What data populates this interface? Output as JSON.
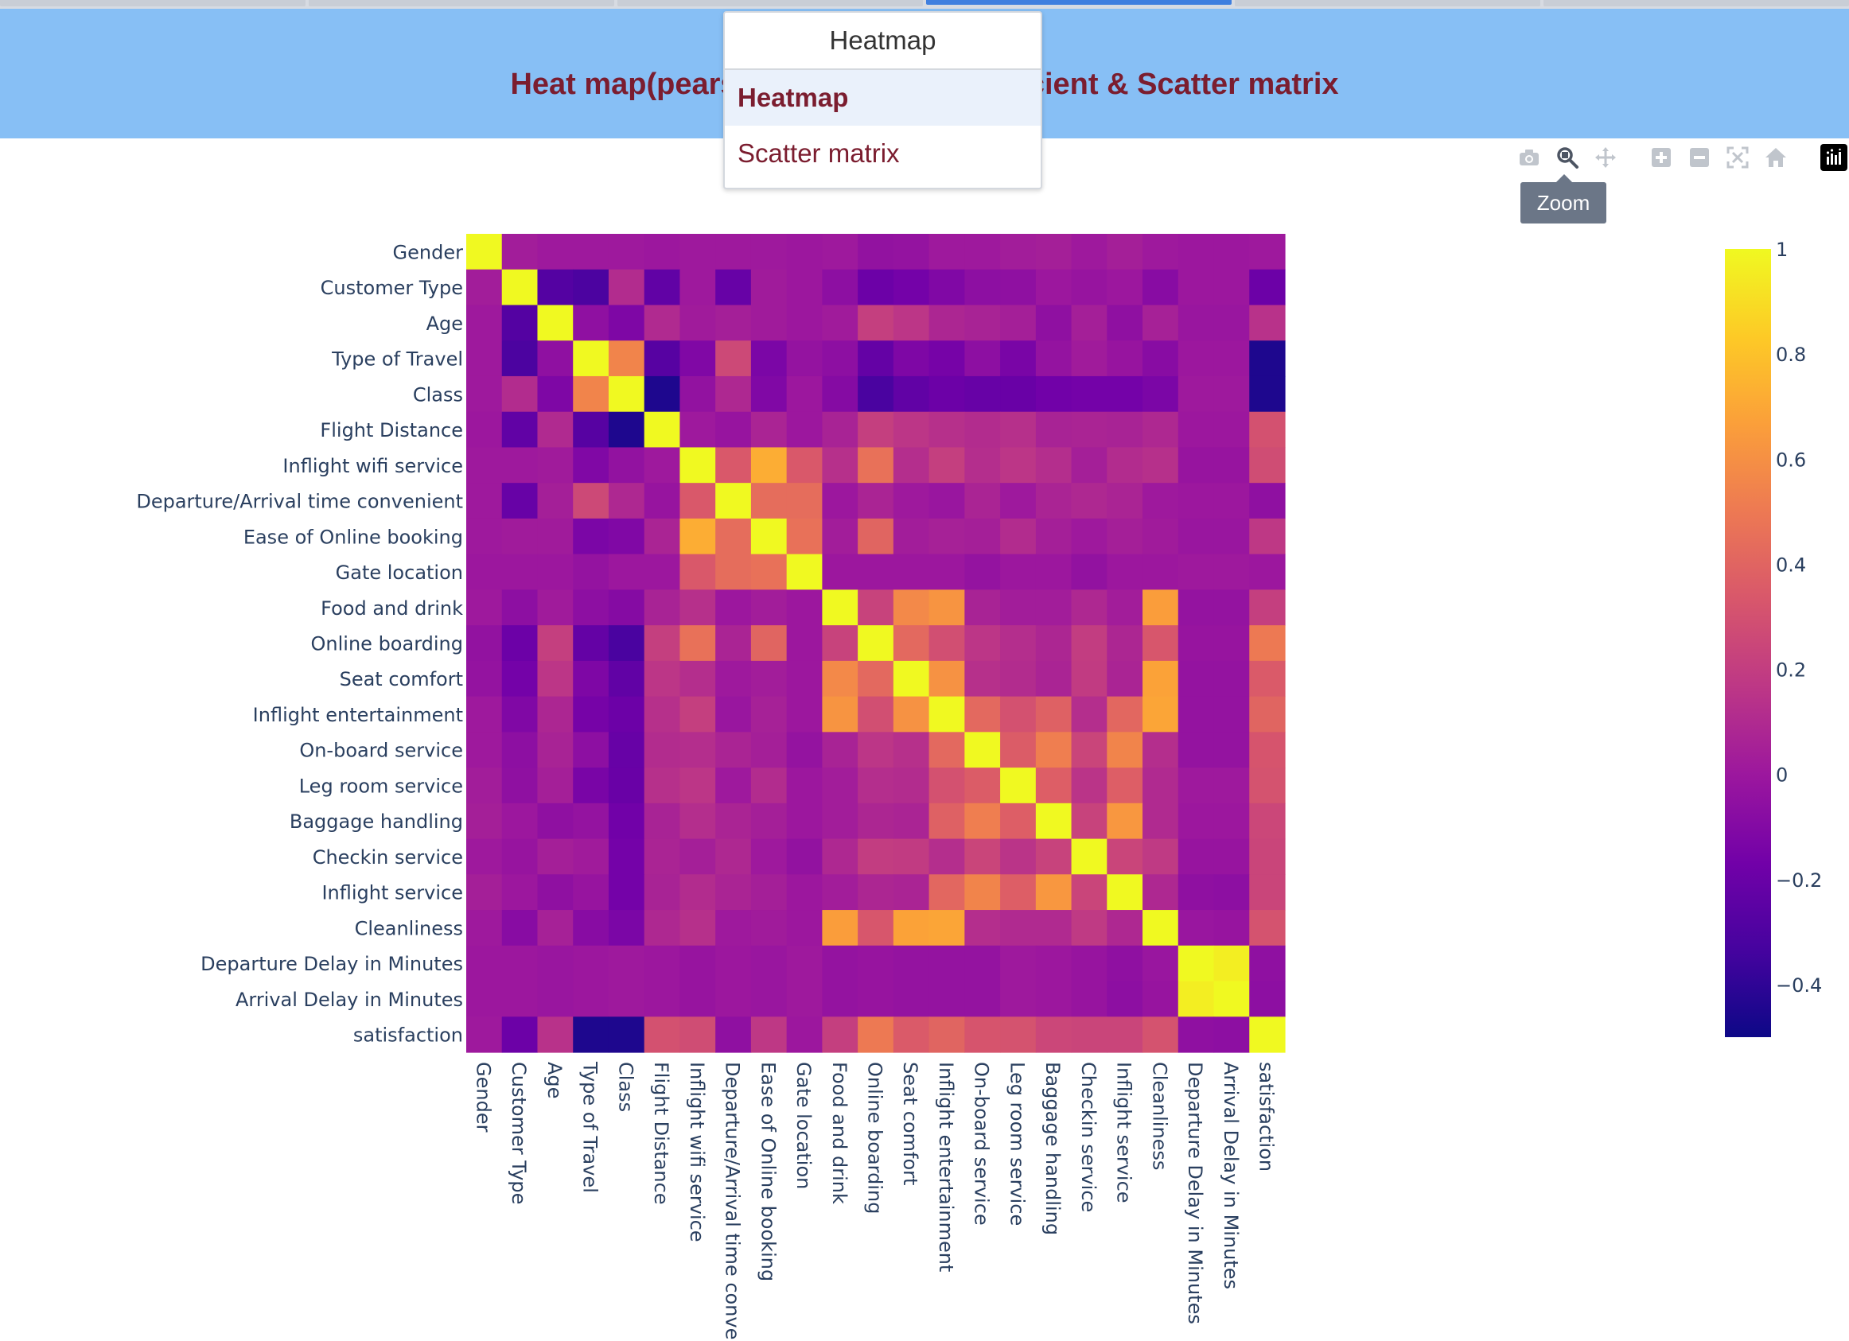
{
  "header": {
    "title": "Heat map(pearson correlation coefficient & Scatter matrix"
  },
  "dropdown": {
    "current": "Heatmap",
    "options": [
      "Heatmap",
      "Scatter matrix"
    ],
    "selected_index": 0
  },
  "modebar": {
    "buttons": [
      "camera-icon",
      "zoom-icon",
      "pan-icon",
      "zoom-in-icon",
      "zoom-out-icon",
      "autoscale-icon",
      "reset-axes-icon"
    ],
    "active": "zoom-icon",
    "tooltip": "Zoom"
  },
  "chart_data": {
    "type": "heatmap",
    "title": "",
    "xlabel": "",
    "ylabel": "",
    "colorscale": "plasma",
    "colorscale_stops": [
      "#0d0887",
      "#46039f",
      "#7201a8",
      "#9c179e",
      "#bd3786",
      "#d8576b",
      "#ed7953",
      "#fb9f3a",
      "#fdca26",
      "#f0f921"
    ],
    "zmin": -0.5,
    "zmax": 1,
    "colorbar_ticks": [
      1,
      0.8,
      0.6,
      0.4,
      0.2,
      0,
      -0.2,
      -0.4
    ],
    "colorbar_tick_labels": [
      "1",
      "0.8",
      "0.6",
      "0.4",
      "0.2",
      "0",
      "−0.2",
      "−0.4"
    ],
    "labels": [
      "Gender",
      "Customer Type",
      "Age",
      "Type of Travel",
      "Class",
      "Flight Distance",
      "Inflight wifi service",
      "Departure/Arrival time convenient",
      "Ease of Online booking",
      "Gate location",
      "Food and drink",
      "Online boarding",
      "Seat comfort",
      "Inflight entertainment",
      "On-board service",
      "Leg room service",
      "Baggage handling",
      "Checkin service",
      "Inflight service",
      "Cleanliness",
      "Departure Delay in Minutes",
      "Arrival Delay in Minutes",
      "satisfaction"
    ],
    "z": [
      [
        1,
        0.03,
        0.01,
        0.01,
        0.01,
        0.0,
        0.01,
        0.01,
        0.01,
        0.0,
        0.01,
        -0.04,
        -0.03,
        0.01,
        0.01,
        0.03,
        0.04,
        0.01,
        0.04,
        0.01,
        0.0,
        0.0,
        0.01
      ],
      [
        0.03,
        1,
        -0.28,
        -0.31,
        0.11,
        -0.23,
        0.01,
        -0.21,
        0.02,
        0.0,
        -0.06,
        -0.19,
        -0.16,
        -0.11,
        -0.06,
        -0.05,
        0.0,
        -0.02,
        0.0,
        -0.08,
        0.0,
        0.0,
        -0.19
      ],
      [
        0.01,
        -0.28,
        1,
        -0.05,
        -0.12,
        0.1,
        0.02,
        0.04,
        0.02,
        0.0,
        0.02,
        0.21,
        0.16,
        0.08,
        0.06,
        0.04,
        -0.05,
        0.04,
        -0.05,
        0.05,
        -0.01,
        -0.01,
        0.14
      ],
      [
        0.01,
        -0.31,
        -0.05,
        1,
        0.55,
        -0.27,
        -0.11,
        0.26,
        -0.13,
        -0.03,
        -0.06,
        -0.22,
        -0.12,
        -0.15,
        -0.06,
        -0.14,
        -0.03,
        0.02,
        -0.02,
        -0.08,
        0.0,
        0.0,
        -0.45
      ],
      [
        0.01,
        0.11,
        -0.12,
        0.55,
        1,
        -0.45,
        -0.04,
        0.09,
        -0.11,
        0.0,
        -0.09,
        -0.32,
        -0.23,
        -0.19,
        -0.21,
        -0.2,
        -0.17,
        -0.16,
        -0.16,
        -0.13,
        0.01,
        0.01,
        -0.45
      ],
      [
        0.0,
        -0.23,
        0.1,
        -0.27,
        -0.45,
        1,
        0.01,
        -0.02,
        0.07,
        0.0,
        0.06,
        0.21,
        0.16,
        0.13,
        0.11,
        0.13,
        0.06,
        0.07,
        0.06,
        0.09,
        0.0,
        0.0,
        0.3
      ],
      [
        0.01,
        0.01,
        0.02,
        -0.11,
        -0.04,
        0.01,
        1,
        0.34,
        0.72,
        0.34,
        0.13,
        0.46,
        0.12,
        0.21,
        0.12,
        0.16,
        0.12,
        0.04,
        0.11,
        0.13,
        -0.02,
        -0.02,
        0.28
      ],
      [
        0.01,
        -0.21,
        0.04,
        0.26,
        0.09,
        -0.02,
        0.34,
        1,
        0.44,
        0.44,
        0.0,
        0.07,
        0.01,
        -0.01,
        0.07,
        0.01,
        0.07,
        0.09,
        0.07,
        0.01,
        0.0,
        0.0,
        -0.05
      ],
      [
        0.01,
        0.02,
        0.02,
        -0.13,
        -0.11,
        0.07,
        0.72,
        0.44,
        1,
        0.46,
        0.03,
        0.4,
        0.03,
        0.05,
        0.04,
        0.11,
        0.04,
        0.01,
        0.04,
        0.02,
        -0.01,
        -0.01,
        0.17
      ],
      [
        0.0,
        0.0,
        0.0,
        -0.03,
        0.0,
        0.0,
        0.34,
        0.44,
        0.46,
        1,
        0.0,
        0.0,
        0.0,
        0.0,
        -0.03,
        0.0,
        0.0,
        -0.04,
        0.0,
        0.0,
        0.01,
        0.01,
        0.0
      ],
      [
        0.01,
        -0.06,
        0.02,
        -0.06,
        -0.09,
        0.06,
        0.13,
        0.0,
        0.03,
        0.0,
        1,
        0.23,
        0.57,
        0.62,
        0.06,
        0.03,
        0.03,
        0.09,
        0.03,
        0.66,
        -0.03,
        -0.03,
        0.21
      ],
      [
        -0.04,
        -0.19,
        0.21,
        -0.22,
        -0.32,
        0.21,
        0.46,
        0.07,
        0.4,
        0.0,
        0.23,
        1,
        0.42,
        0.29,
        0.16,
        0.12,
        0.08,
        0.2,
        0.08,
        0.33,
        -0.02,
        -0.02,
        0.5
      ],
      [
        -0.03,
        -0.16,
        0.16,
        -0.12,
        -0.23,
        0.16,
        0.12,
        0.01,
        0.03,
        0.0,
        0.57,
        0.42,
        1,
        0.61,
        0.13,
        0.11,
        0.07,
        0.19,
        0.07,
        0.68,
        -0.03,
        -0.03,
        0.35
      ],
      [
        0.01,
        -0.11,
        0.08,
        -0.15,
        -0.19,
        0.13,
        0.21,
        -0.01,
        0.05,
        0.0,
        0.62,
        0.29,
        0.61,
        1,
        0.42,
        0.3,
        0.38,
        0.12,
        0.41,
        0.69,
        -0.03,
        -0.03,
        0.4
      ],
      [
        0.01,
        -0.06,
        0.06,
        -0.06,
        -0.21,
        0.11,
        0.12,
        0.07,
        0.04,
        -0.03,
        0.06,
        0.16,
        0.13,
        0.42,
        1,
        0.36,
        0.52,
        0.24,
        0.55,
        0.12,
        -0.03,
        -0.03,
        0.32
      ],
      [
        0.03,
        -0.05,
        0.04,
        -0.14,
        -0.2,
        0.13,
        0.16,
        0.01,
        0.11,
        0.0,
        0.03,
        0.12,
        0.11,
        0.3,
        0.36,
        1,
        0.37,
        0.15,
        0.37,
        0.1,
        0.01,
        0.01,
        0.31
      ],
      [
        0.04,
        0.0,
        -0.05,
        -0.03,
        -0.17,
        0.06,
        0.12,
        0.07,
        0.04,
        0.0,
        0.03,
        0.08,
        0.07,
        0.38,
        0.52,
        0.37,
        1,
        0.23,
        0.63,
        0.1,
        0.0,
        0.0,
        0.25
      ],
      [
        0.01,
        -0.02,
        0.04,
        0.02,
        -0.16,
        0.07,
        0.04,
        0.09,
        0.01,
        -0.04,
        0.09,
        0.2,
        0.19,
        0.12,
        0.24,
        0.15,
        0.23,
        1,
        0.24,
        0.18,
        -0.02,
        -0.02,
        0.24
      ],
      [
        0.04,
        0.0,
        -0.05,
        -0.02,
        -0.16,
        0.06,
        0.11,
        0.07,
        0.04,
        0.0,
        0.03,
        0.08,
        0.07,
        0.41,
        0.55,
        0.37,
        0.63,
        0.24,
        1,
        0.09,
        -0.05,
        -0.06,
        0.24
      ],
      [
        0.01,
        -0.08,
        0.05,
        -0.08,
        -0.13,
        0.09,
        0.13,
        0.01,
        0.02,
        0.0,
        0.66,
        0.33,
        0.68,
        0.69,
        0.12,
        0.1,
        0.1,
        0.18,
        0.09,
        1,
        -0.01,
        -0.02,
        0.31
      ],
      [
        0.0,
        0.0,
        -0.01,
        0.0,
        0.01,
        0.0,
        -0.02,
        0.0,
        -0.01,
        0.01,
        -0.03,
        -0.02,
        -0.03,
        -0.03,
        -0.03,
        0.01,
        0.0,
        -0.02,
        -0.05,
        -0.01,
        1,
        0.96,
        -0.05
      ],
      [
        0.0,
        0.0,
        -0.01,
        0.0,
        0.01,
        0.0,
        -0.02,
        0.0,
        -0.01,
        0.01,
        -0.03,
        -0.02,
        -0.03,
        -0.03,
        -0.03,
        0.01,
        0.0,
        -0.02,
        -0.06,
        -0.02,
        0.96,
        1,
        -0.06
      ],
      [
        0.01,
        -0.19,
        0.14,
        -0.45,
        -0.45,
        0.3,
        0.28,
        -0.05,
        0.17,
        0.0,
        0.21,
        0.5,
        0.35,
        0.4,
        0.32,
        0.31,
        0.25,
        0.24,
        0.24,
        0.31,
        -0.05,
        -0.06,
        1
      ]
    ]
  }
}
